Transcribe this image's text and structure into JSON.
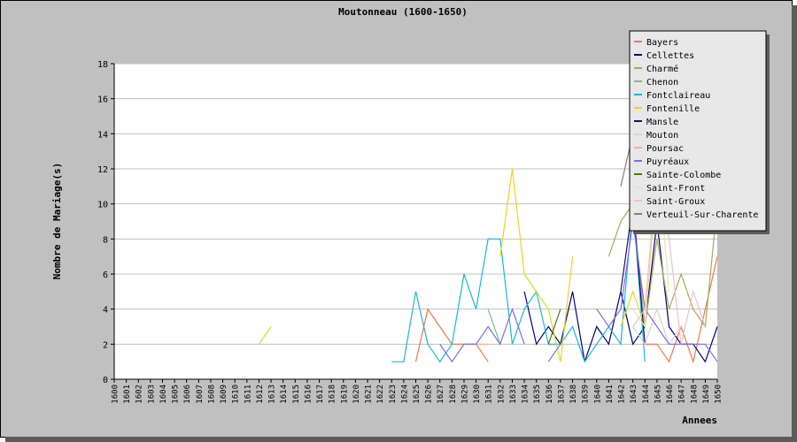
{
  "chart_data": {
    "type": "line",
    "title": "Moutonneau (1600-1650)",
    "xlabel": "Annees",
    "ylabel": "Nombre de Mariage(s)",
    "ylim": [
      0,
      18
    ],
    "yticks": [
      0,
      2,
      4,
      6,
      8,
      10,
      12,
      14,
      16,
      18
    ],
    "x": [
      1600,
      1601,
      1602,
      1603,
      1604,
      1605,
      1606,
      1607,
      1608,
      1609,
      1610,
      1611,
      1612,
      1613,
      1614,
      1615,
      1616,
      1617,
      1618,
      1619,
      1620,
      1621,
      1622,
      1623,
      1624,
      1625,
      1626,
      1627,
      1628,
      1629,
      1630,
      1631,
      1632,
      1633,
      1634,
      1635,
      1636,
      1637,
      1638,
      1639,
      1640,
      1641,
      1642,
      1643,
      1644,
      1645,
      1646,
      1647,
      1648,
      1649,
      1650
    ],
    "grid": "horizontal",
    "legend_position": "top-right",
    "series": [
      {
        "name": "Bayers",
        "color": "#f4764a",
        "points": [
          [
            1625,
            1
          ],
          [
            1626,
            4
          ],
          [
            1627,
            3
          ],
          [
            1628,
            2
          ],
          [
            1629,
            2
          ],
          [
            1630,
            2
          ],
          [
            1631,
            1
          ],
          [
            1644,
            2
          ],
          [
            1645,
            2
          ],
          [
            1646,
            1
          ],
          [
            1647,
            3
          ],
          [
            1648,
            1
          ],
          [
            1649,
            4
          ],
          [
            1650,
            7
          ]
        ]
      },
      {
        "name": "Cellettes",
        "color": "#000080",
        "points": [
          [
            1634,
            5
          ],
          [
            1635,
            2
          ],
          [
            1636,
            3
          ],
          [
            1637,
            2
          ],
          [
            1638,
            5
          ],
          [
            1639,
            1
          ],
          [
            1640,
            3
          ],
          [
            1641,
            2
          ],
          [
            1642,
            5
          ],
          [
            1643,
            2
          ],
          [
            1644,
            3
          ],
          [
            1645,
            9
          ],
          [
            1646,
            3
          ],
          [
            1647,
            2
          ],
          [
            1648,
            2
          ],
          [
            1649,
            1
          ],
          [
            1650,
            3
          ]
        ]
      },
      {
        "name": "Charmé",
        "color": "#a9a95a",
        "points": [
          [
            1641,
            7
          ],
          [
            1642,
            9
          ],
          [
            1643,
            10
          ],
          [
            1644,
            3
          ],
          [
            1645,
            8
          ],
          [
            1646,
            4
          ],
          [
            1647,
            6
          ],
          [
            1648,
            4
          ],
          [
            1649,
            3
          ],
          [
            1650,
            10
          ]
        ]
      },
      {
        "name": "Chenon",
        "color": "#6fc48a",
        "points": [
          [
            1631,
            4
          ],
          [
            1632,
            2
          ]
        ]
      },
      {
        "name": "Fontclaireau",
        "color": "#17b8d8",
        "points": [
          [
            1623,
            1
          ],
          [
            1624,
            1
          ],
          [
            1625,
            5
          ],
          [
            1626,
            2
          ],
          [
            1627,
            1
          ],
          [
            1628,
            2
          ],
          [
            1629,
            6
          ],
          [
            1630,
            4
          ],
          [
            1631,
            8
          ],
          [
            1632,
            8
          ],
          [
            1633,
            2
          ],
          [
            1634,
            4
          ],
          [
            1635,
            5
          ],
          [
            1636,
            2
          ],
          [
            1637,
            2
          ],
          [
            1638,
            3
          ],
          [
            1639,
            1
          ],
          [
            1640,
            2
          ],
          [
            1641,
            3
          ],
          [
            1642,
            2
          ],
          [
            1643,
            10
          ],
          [
            1644,
            1
          ]
        ]
      },
      {
        "name": "Fontenille",
        "color": "#f0d21e",
        "points": [
          [
            1612,
            2
          ],
          [
            1613,
            3
          ],
          [
            1632,
            7
          ],
          [
            1633,
            12
          ],
          [
            1634,
            6
          ],
          [
            1635,
            5
          ],
          [
            1636,
            4
          ],
          [
            1637,
            1
          ],
          [
            1638,
            7
          ],
          [
            1642,
            3
          ],
          [
            1643,
            5
          ],
          [
            1644,
            3
          ],
          [
            1645,
            12
          ]
        ]
      },
      {
        "name": "Mansle",
        "color": "#240a6e",
        "points": [
          [
            1642,
            5
          ],
          [
            1643,
            10
          ],
          [
            1644,
            2
          ]
        ]
      },
      {
        "name": "Mouton",
        "color": "#d4d4d4",
        "points": [
          [
            1643,
            3
          ],
          [
            1644,
            2
          ],
          [
            1645,
            4
          ],
          [
            1646,
            2
          ],
          [
            1647,
            3
          ]
        ]
      },
      {
        "name": "Poursac",
        "color": "#f6b088",
        "points": [
          [
            1630,
            2
          ],
          [
            1631,
            2
          ]
        ]
      },
      {
        "name": "Puyréaux",
        "color": "#7a6cf0",
        "points": [
          [
            1627,
            2
          ],
          [
            1628,
            1
          ],
          [
            1629,
            2
          ],
          [
            1630,
            2
          ],
          [
            1631,
            3
          ],
          [
            1632,
            2
          ],
          [
            1633,
            4
          ],
          [
            1634,
            2
          ],
          [
            1636,
            1
          ],
          [
            1637,
            2
          ],
          [
            1640,
            4
          ],
          [
            1641,
            3
          ],
          [
            1642,
            4
          ],
          [
            1643,
            9
          ],
          [
            1644,
            4
          ],
          [
            1645,
            3
          ],
          [
            1646,
            2
          ],
          [
            1647,
            2
          ],
          [
            1648,
            2
          ],
          [
            1649,
            2
          ],
          [
            1650,
            1
          ]
        ]
      },
      {
        "name": "Sainte-Colombe",
        "color": "#4a7c12",
        "points": [
          [
            1636,
            2
          ],
          [
            1637,
            4
          ]
        ]
      },
      {
        "name": "Saint-Front",
        "color": "#e7e8a8",
        "points": [
          [
            1643,
            4
          ],
          [
            1644,
            3
          ],
          [
            1645,
            13
          ],
          [
            1646,
            5
          ]
        ]
      },
      {
        "name": "Saint-Groux",
        "color": "#f4c0c8",
        "points": [
          [
            1643,
            3
          ],
          [
            1644,
            4
          ],
          [
            1645,
            12
          ],
          [
            1646,
            8
          ],
          [
            1647,
            2
          ],
          [
            1648,
            5
          ],
          [
            1649,
            3
          ]
        ]
      },
      {
        "name": "Verteuil-Sur-Charente",
        "color": "#a0707a",
        "points": [
          [
            1642,
            11
          ],
          [
            1643,
            14
          ]
        ]
      }
    ]
  }
}
